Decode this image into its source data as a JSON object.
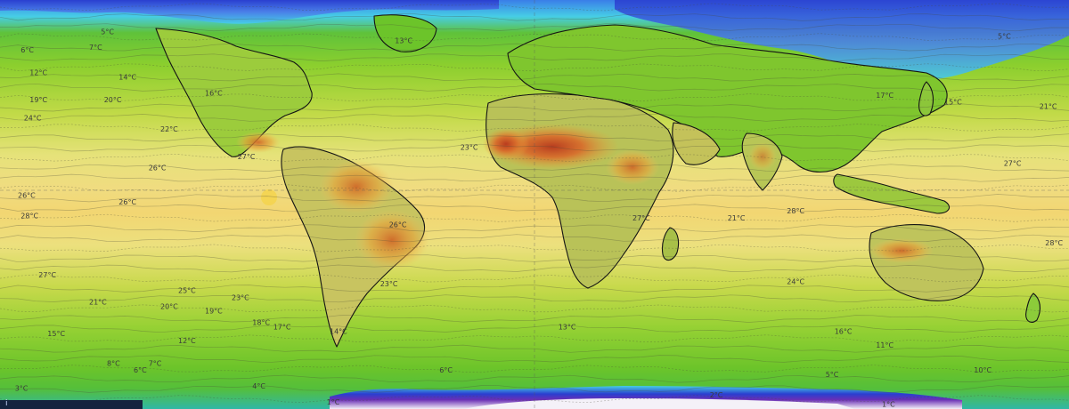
{
  "map": {
    "projection": "equirectangular",
    "variable": "temperature",
    "unit": "°C",
    "palette": {
      "polar_white": "#f4f1f8",
      "ice_purple": "#6a2fb5",
      "deep_blue": "#2a3fd0",
      "cold_blue": "#4a7fe8",
      "cyan": "#46cde6",
      "teal": "#2fb7a6",
      "green": "#6cc22a",
      "lime": "#a8d43a",
      "yellow_green": "#d6df62",
      "pale_yellow": "#efe38a",
      "yellow": "#f2d36a",
      "orange": "#e8a23a",
      "dark_orange": "#d9692a",
      "red": "#b8361c",
      "border": "#141414"
    },
    "isotherm_labels": [
      {
        "text": "5°C",
        "lon": -146,
        "lat": 75
      },
      {
        "text": "6°C",
        "lon": -173,
        "lat": 67
      },
      {
        "text": "7°C",
        "lon": -150,
        "lat": 68
      },
      {
        "text": "12°C",
        "lon": -170,
        "lat": 57
      },
      {
        "text": "14°C",
        "lon": -140,
        "lat": 55
      },
      {
        "text": "19°C",
        "lon": -170,
        "lat": 45
      },
      {
        "text": "20°C",
        "lon": -145,
        "lat": 45
      },
      {
        "text": "16°C",
        "lon": -111,
        "lat": 48
      },
      {
        "text": "24°C",
        "lon": -172,
        "lat": 37
      },
      {
        "text": "22°C",
        "lon": -126,
        "lat": 32
      },
      {
        "text": "26°C",
        "lon": -130,
        "lat": 15
      },
      {
        "text": "27°C",
        "lon": -100,
        "lat": 20
      },
      {
        "text": "26°C",
        "lon": -174,
        "lat": 3
      },
      {
        "text": "26°C",
        "lon": -140,
        "lat": 0
      },
      {
        "text": "28°C",
        "lon": -173,
        "lat": -6
      },
      {
        "text": "27°C",
        "lon": -167,
        "lat": -32
      },
      {
        "text": "25°C",
        "lon": -120,
        "lat": -39
      },
      {
        "text": "21°C",
        "lon": -150,
        "lat": -44
      },
      {
        "text": "20°C",
        "lon": -126,
        "lat": -46
      },
      {
        "text": "19°C",
        "lon": -111,
        "lat": -48
      },
      {
        "text": "23°C",
        "lon": -102,
        "lat": -42
      },
      {
        "text": "18°C",
        "lon": -95,
        "lat": -53
      },
      {
        "text": "17°C",
        "lon": -88,
        "lat": -55
      },
      {
        "text": "14°C",
        "lon": -69,
        "lat": -57
      },
      {
        "text": "15°C",
        "lon": -164,
        "lat": -58
      },
      {
        "text": "12°C",
        "lon": -120,
        "lat": -61
      },
      {
        "text": "8°C",
        "lon": -144,
        "lat": -71
      },
      {
        "text": "7°C",
        "lon": -130,
        "lat": -71
      },
      {
        "text": "6°C",
        "lon": -135,
        "lat": -74
      },
      {
        "text": "4°C",
        "lon": -95,
        "lat": -81
      },
      {
        "text": "3°C",
        "lon": -175,
        "lat": -82
      },
      {
        "text": "1°C",
        "lon": -70,
        "lat": -88
      },
      {
        "text": "13°C",
        "lon": -47,
        "lat": 71
      },
      {
        "text": "23°C",
        "lon": -25,
        "lat": 24
      },
      {
        "text": "26°C",
        "lon": -49,
        "lat": -10
      },
      {
        "text": "27°C",
        "lon": 33,
        "lat": -7
      },
      {
        "text": "23°C",
        "lon": -52,
        "lat": -36
      },
      {
        "text": "6°C",
        "lon": -32,
        "lat": -74
      },
      {
        "text": "13°C",
        "lon": 8,
        "lat": -55
      },
      {
        "text": "21°C",
        "lon": 65,
        "lat": -7
      },
      {
        "text": "28°C",
        "lon": 85,
        "lat": -4
      },
      {
        "text": "24°C",
        "lon": 85,
        "lat": -35
      },
      {
        "text": "16°C",
        "lon": 101,
        "lat": -57
      },
      {
        "text": "11°C",
        "lon": 115,
        "lat": -63
      },
      {
        "text": "5°C",
        "lon": 98,
        "lat": -76
      },
      {
        "text": "2°C",
        "lon": 59,
        "lat": -85
      },
      {
        "text": "1°C",
        "lon": 117,
        "lat": -89
      },
      {
        "text": "17°C",
        "lon": 115,
        "lat": 47
      },
      {
        "text": "15°C",
        "lon": 138,
        "lat": 44
      },
      {
        "text": "21°C",
        "lon": 170,
        "lat": 42
      },
      {
        "text": "27°C",
        "lon": 158,
        "lat": 17
      },
      {
        "text": "28°C",
        "lon": 172,
        "lat": -18
      },
      {
        "text": "10°C",
        "lon": 148,
        "lat": -74
      },
      {
        "text": "5°C",
        "lon": 156,
        "lat": 73
      }
    ],
    "badge_text": "i"
  }
}
